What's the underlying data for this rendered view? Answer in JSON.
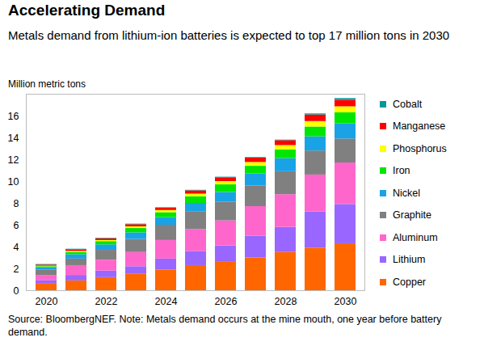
{
  "chart_data": {
    "type": "bar",
    "stacked": true,
    "title": "Accelerating Demand",
    "subtitle": "Metals demand from lithium-ion batteries is expected to top 17 million tons in 2030",
    "ylabel": "Million metric tons",
    "source": "Source: BloombergNEF. Note: Metals demand occurs at the mine mouth, one year before battery demand.",
    "categories": [
      "2020",
      null,
      "2022",
      null,
      "2024",
      null,
      "2026",
      null,
      "2028",
      null,
      "2030"
    ],
    "ylim": [
      0,
      18
    ],
    "yticks": [
      0,
      2,
      4,
      6,
      8,
      10,
      12,
      14,
      16
    ],
    "grid": false,
    "legend": "right",
    "series": [
      {
        "name": "Copper",
        "color": "#ff6600",
        "values": [
          0.6,
          0.9,
          1.2,
          1.5,
          1.9,
          2.3,
          2.6,
          3.0,
          3.5,
          3.9,
          4.3
        ]
      },
      {
        "name": "Lithium",
        "color": "#9966ff",
        "values": [
          0.3,
          0.5,
          0.6,
          0.7,
          1.0,
          1.3,
          1.5,
          2.0,
          2.3,
          3.3,
          3.6
        ]
      },
      {
        "name": "Aluminum",
        "color": "#ff66cc",
        "values": [
          0.5,
          0.9,
          1.0,
          1.3,
          1.7,
          2.0,
          2.3,
          2.7,
          3.0,
          3.4,
          3.8
        ]
      },
      {
        "name": "Graphite",
        "color": "#808080",
        "values": [
          0.5,
          0.6,
          0.9,
          1.2,
          1.4,
          1.6,
          1.7,
          1.9,
          2.1,
          2.2,
          2.2
        ]
      },
      {
        "name": "Nickel",
        "color": "#19a3e6",
        "values": [
          0.2,
          0.4,
          0.5,
          0.6,
          0.7,
          0.8,
          0.9,
          1.1,
          1.2,
          1.3,
          1.4
        ]
      },
      {
        "name": "Iron",
        "color": "#00e600",
        "values": [
          0.1,
          0.2,
          0.3,
          0.4,
          0.45,
          0.6,
          0.7,
          0.7,
          0.8,
          0.9,
          1.0
        ]
      },
      {
        "name": "Phosphorus",
        "color": "#ffff00",
        "values": [
          0.05,
          0.1,
          0.1,
          0.15,
          0.2,
          0.25,
          0.3,
          0.35,
          0.4,
          0.5,
          0.55
        ]
      },
      {
        "name": "Manganese",
        "color": "#ff0000",
        "values": [
          0.1,
          0.15,
          0.15,
          0.2,
          0.2,
          0.3,
          0.35,
          0.4,
          0.45,
          0.6,
          0.6
        ]
      },
      {
        "name": "Cobalt",
        "color": "#009999",
        "values": [
          0.05,
          0.05,
          0.05,
          0.05,
          0.05,
          0.05,
          0.05,
          0.05,
          0.05,
          0.1,
          0.15
        ]
      }
    ]
  }
}
